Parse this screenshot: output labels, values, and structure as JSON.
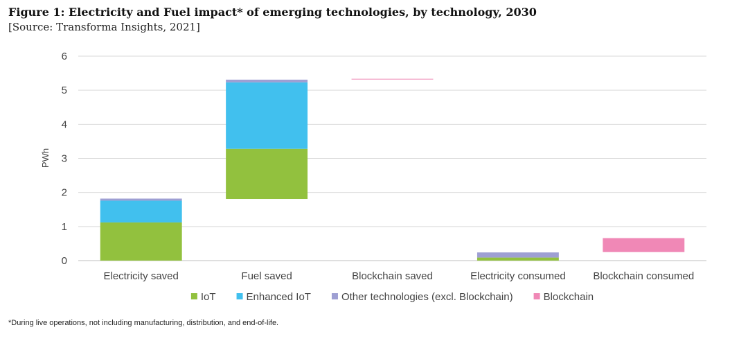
{
  "header": {
    "title": "Figure 1: Electricity and Fuel impact* of emerging technologies, by technology, 2030",
    "source": "[Source: Transforma Insights, 2021]"
  },
  "footnote": "*During live operations, not including manufacturing, distribution, and end-of-life.",
  "chart_data": {
    "type": "bar",
    "subtype": "waterfall-stacked",
    "title": "Figure 1: Electricity and Fuel impact* of emerging technologies, by technology, 2030",
    "ylabel": "PWh",
    "xlabel": "",
    "ylim": [
      0,
      6
    ],
    "yticks": [
      0,
      1,
      2,
      3,
      4,
      5,
      6
    ],
    "grid": true,
    "legend_position": "bottom",
    "categories": [
      "Electricity saved",
      "Fuel saved",
      "Blockchain saved",
      "Electricity consumed",
      "Blockchain consumed"
    ],
    "base": [
      0,
      1.81,
      5.33,
      0,
      0.25
    ],
    "series": [
      {
        "name": "IoT",
        "color": "#92c13e",
        "values": [
          1.12,
          1.47,
          0,
          0.09,
          0
        ]
      },
      {
        "name": "Enhanced IoT",
        "color": "#41c0ee",
        "values": [
          0.64,
          1.95,
          0,
          0,
          0
        ]
      },
      {
        "name": "Other technologies (excl. Blockchain)",
        "color": "#9e9fd3",
        "values": [
          0.06,
          0.08,
          0,
          0.15,
          0
        ]
      },
      {
        "name": "Blockchain",
        "color": "#f088b6",
        "values": [
          0,
          0,
          0.005,
          0,
          0.41
        ]
      }
    ]
  }
}
